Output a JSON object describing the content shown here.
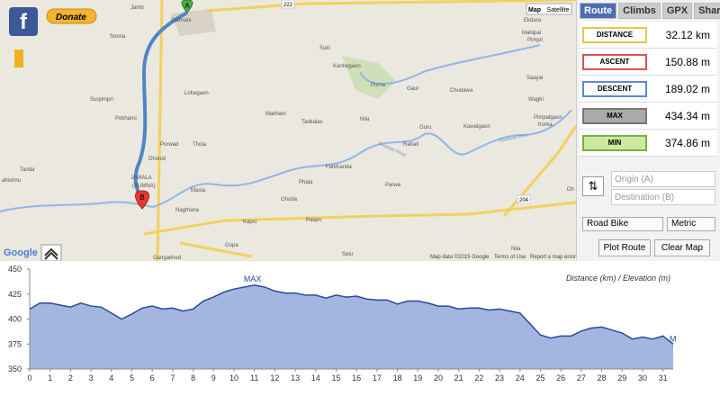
{
  "map": {
    "facebook": "f",
    "donate": "Donate",
    "map_type": [
      "Map",
      "Satellite"
    ],
    "google": "Google",
    "footer": [
      "Map data ©2015 Google",
      "Terms of Use",
      "Report a map error"
    ],
    "road_numbers": [
      "222",
      "204"
    ],
    "river_labels": [
      "Godavari River",
      "Godavari River"
    ],
    "labels": [
      "Jamb",
      "Pathrani",
      "Sonna",
      "Suki",
      "Kanhegaon",
      "Purna",
      "Gaur",
      "Chudawa",
      "Lohagaon",
      "Surpimpri",
      "Pokharni",
      "Makhani",
      "Tadkalas",
      "Nila",
      "Guru",
      "Kawalgaon",
      "Rahati",
      "Porwad",
      "Thoia",
      "Dhondi",
      "Farkhanda",
      "Phala",
      "Parwa",
      "Ghoda",
      "Masla",
      "Nagthana",
      "Kapsi",
      "Palam",
      "Gopa",
      "Selu",
      "Gangakhed",
      "JAWALA",
      "(BUMNA)",
      "Ekdara",
      "Mahipal",
      "Pimpri",
      "Saayal",
      "Waghi",
      "Pimpalgaon",
      "Korka",
      "Tanda",
      "ahishnu",
      "Nila",
      "Dh"
    ],
    "markers": [
      "A",
      "B"
    ]
  },
  "panel": {
    "tabs": [
      "Route",
      "Climbs",
      "GPX",
      "Share"
    ],
    "stats": [
      {
        "label": "DISTANCE",
        "value": "32.12 km"
      },
      {
        "label": "ASCENT",
        "value": "150.88 m"
      },
      {
        "label": "DESCENT",
        "value": "189.02 m"
      },
      {
        "label": "MAX",
        "value": "434.34 m"
      },
      {
        "label": "MIN",
        "value": "374.86 m"
      }
    ],
    "swap": "⇅",
    "origin_placeholder": "Origin (A)",
    "destination_placeholder": "Destination (B)",
    "bike": "Road Bike",
    "units": "Metric",
    "buttons": [
      "Plot Route",
      "Clear Map"
    ]
  },
  "chart_data": {
    "type": "area",
    "axis_label": "Distance (km) / Elevation (m)",
    "color": "#a4b6e0",
    "line_color": "#2a4a9a",
    "annotations": [
      "MAX",
      "M"
    ],
    "x": [
      0,
      0.5,
      1,
      1.5,
      2,
      2.5,
      3,
      3.5,
      4,
      4.5,
      5,
      5.5,
      6,
      6.5,
      7,
      7.5,
      8,
      8.5,
      9,
      9.5,
      10,
      10.5,
      11,
      11.5,
      12,
      12.5,
      13,
      13.5,
      14,
      14.5,
      15,
      15.5,
      16,
      16.5,
      17,
      17.5,
      18,
      18.5,
      19,
      19.5,
      20,
      20.5,
      21,
      21.5,
      22,
      22.5,
      23,
      23.5,
      24,
      24.5,
      25,
      25.5,
      26,
      26.5,
      27,
      27.5,
      28,
      28.5,
      29,
      29.5,
      30,
      30.5,
      31,
      31.5
    ],
    "values": [
      410,
      416,
      416,
      414,
      412,
      416,
      413,
      412,
      406,
      400,
      405,
      411,
      413,
      410,
      411,
      408,
      410,
      418,
      422,
      427,
      430,
      432,
      434,
      432,
      428,
      426,
      426,
      424,
      424,
      421,
      424,
      422,
      423,
      420,
      419,
      419,
      415,
      418,
      418,
      416,
      413,
      413,
      410,
      411,
      411,
      409,
      410,
      408,
      406,
      395,
      384,
      381,
      383,
      383,
      388,
      391,
      392,
      389,
      386,
      380,
      382,
      380,
      383,
      375
    ],
    "xlim": [
      0,
      31.5
    ],
    "ylim": [
      350,
      450
    ],
    "xticks": [
      0,
      1,
      2,
      3,
      4,
      5,
      6,
      7,
      8,
      9,
      10,
      11,
      12,
      13,
      14,
      15,
      16,
      17,
      18,
      19,
      20,
      21,
      22,
      23,
      24,
      25,
      26,
      27,
      28,
      29,
      30,
      31
    ],
    "yticks": [
      350,
      375,
      400,
      425,
      450
    ],
    "grid": false
  }
}
